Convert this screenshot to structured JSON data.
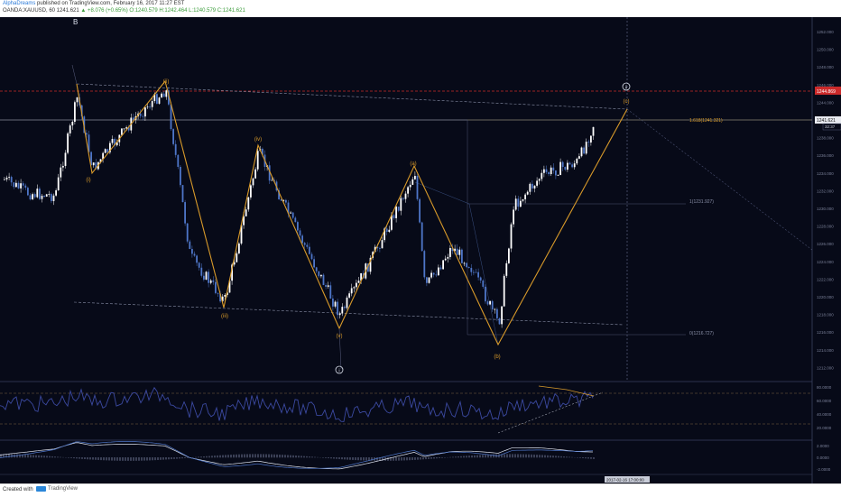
{
  "header": {
    "author": "AlphaDreams",
    "published": " published on TradingView.com, February 16, 2017 11:27 EST",
    "symbol_line": "OANDA:XAUUSD, 60  1241.621",
    "change": "▲ +8.076 (+0.65%)",
    "ohlc": "O:1240.579 H:1242.464 L:1240.579 C:1241.621"
  },
  "chart_data": {
    "type": "line",
    "title": "",
    "wave_labels": {
      "B": "B",
      "i_minor": "(i)",
      "ii_minor": "(ii)",
      "iii_minor": "(iii)",
      "iv_minor": "(iv)",
      "v_minor": "(v)",
      "a": "(a)",
      "b": "(b)",
      "c": "(c)",
      "circle_i": "i",
      "circle_ii": "ii"
    },
    "fib_labels": {
      "f1618": "1.618(1241.321)",
      "f1": "1(1231.927)",
      "f0": "0(1216.727)"
    },
    "price_tags": {
      "red": "1244.869",
      "last": "1241.621",
      "last_sub": "32:37"
    },
    "y_ticks": [
      "1252.000",
      "1250.000",
      "1248.000",
      "1246.000",
      "1244.000",
      "1240.000",
      "1238.000",
      "1236.000",
      "1234.000",
      "1232.000",
      "1230.000",
      "1228.000",
      "1226.000",
      "1224.000",
      "1222.000",
      "1220.000",
      "1218.000",
      "1216.000",
      "1214.000",
      "1212.000"
    ],
    "osc1_ticks": [
      "80.0000",
      "60.0000",
      "40.0000",
      "20.0000"
    ],
    "osc2_ticks": [
      "2.0000",
      "0.0000",
      "-2.0000"
    ],
    "x_ticks": [
      "",
      "",
      "",
      "",
      "",
      "",
      "",
      "",
      "",
      "",
      "",
      "",
      "",
      "",
      "",
      "",
      "",
      "",
      "",
      "",
      ""
    ],
    "time_tag": "2017-02-16 17:00:00"
  },
  "footer": {
    "made": "Created with",
    "brand": "TradingView"
  },
  "colors": {
    "background": "#070a18",
    "wave": "#d89a2a",
    "up_candle": "#ffffff",
    "down_candle": "#4e76c8",
    "red_line": "#cc2a2a",
    "oscillator": "#3b49a0"
  }
}
